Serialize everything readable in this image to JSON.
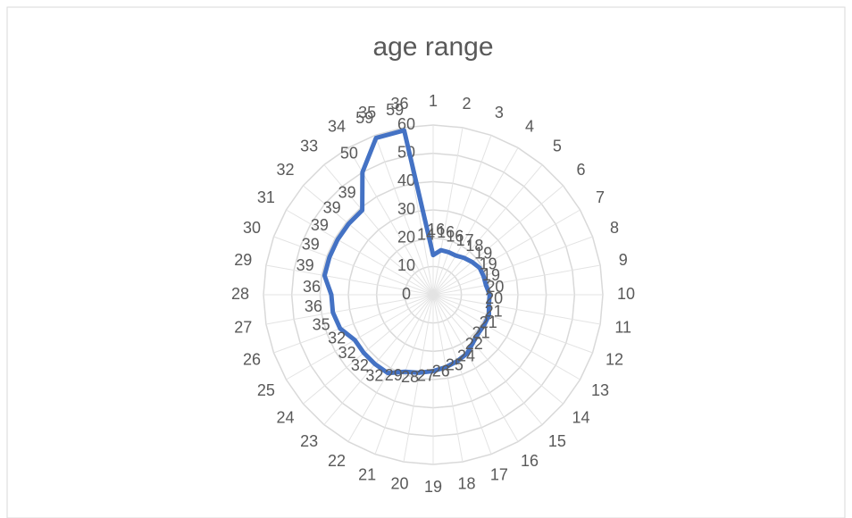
{
  "chart_data": {
    "type": "radar",
    "title": "age range",
    "categories": [
      "1",
      "2",
      "3",
      "4",
      "5",
      "6",
      "7",
      "8",
      "9",
      "10",
      "11",
      "12",
      "13",
      "14",
      "15",
      "16",
      "17",
      "18",
      "19",
      "20",
      "21",
      "22",
      "23",
      "24",
      "25",
      "26",
      "27",
      "28",
      "29",
      "30",
      "31",
      "32",
      "33",
      "34",
      "35",
      "36"
    ],
    "series": [
      {
        "name": "age range",
        "color": "#4472c4",
        "values": [
          14,
          16,
          16,
          16,
          17,
          18,
          19,
          19,
          19,
          20,
          20,
          21,
          21,
          21,
          22,
          24,
          25,
          26,
          27,
          28,
          29,
          32,
          32,
          32,
          32,
          35,
          36,
          36,
          39,
          39,
          39,
          39,
          39,
          50,
          59,
          59
        ]
      }
    ],
    "ylim": [
      0,
      60
    ],
    "yticks": [
      0,
      10,
      20,
      30,
      40,
      50,
      60
    ],
    "grid": true,
    "data_labels": true
  }
}
